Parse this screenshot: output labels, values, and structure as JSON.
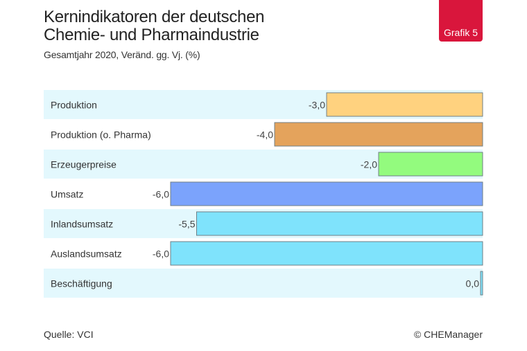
{
  "header": {
    "title_line1": "Kernindikatoren der deutschen",
    "title_line2": "Chemie- und Pharmaindustrie",
    "subtitle": "Gesamtjahr 2020, Veränd. gg. Vj. (%)",
    "badge": "Grafik 5"
  },
  "footer": {
    "source": "Quelle: VCI",
    "copyright": "© CHEManager"
  },
  "colors": {
    "badge": "#d9163c",
    "band": "#e3f8fd",
    "bar_border": "#6f7f86"
  },
  "chart_data": {
    "type": "bar",
    "orientation": "horizontal",
    "title": "Kernindikatoren der deutschen Chemie- und Pharmaindustrie",
    "subtitle": "Gesamtjahr 2020, Veränd. gg. Vj. (%)",
    "xlabel": "",
    "ylabel": "",
    "xlim": [
      -6,
      0
    ],
    "grid": false,
    "categories": [
      "Produktion",
      "Produktion (o. Pharma)",
      "Erzeugerpreise",
      "Umsatz",
      "Inlandsumsatz",
      "Auslandsumsatz",
      "Beschäftigung"
    ],
    "values": [
      -3.0,
      -4.0,
      -2.0,
      -6.0,
      -5.5,
      -6.0,
      0.0
    ],
    "value_labels": [
      "-3,0",
      "-4,0",
      "-2,0",
      "-6,0",
      "-5,5",
      "-6,0",
      "0,0"
    ],
    "bar_colors": [
      "#ffd27f",
      "#e4a35c",
      "#93fb7e",
      "#7ba3fc",
      "#7fe3fc",
      "#7fe3fc",
      "#7fe3fc"
    ]
  }
}
